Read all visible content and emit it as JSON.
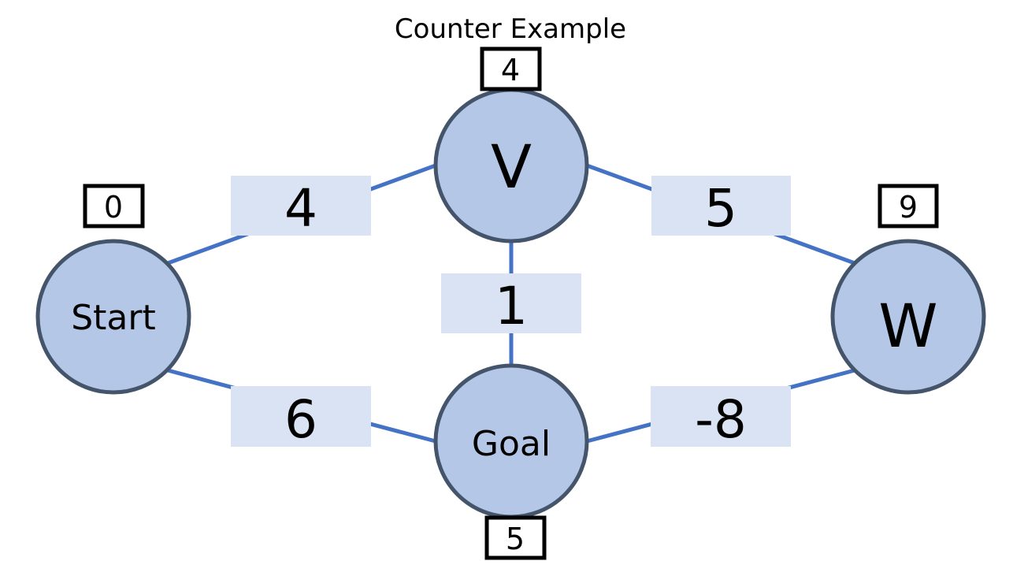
{
  "title": "Counter Example",
  "nodes": {
    "start": {
      "label": "Start",
      "distance": "0"
    },
    "v": {
      "label": "V",
      "distance": "4"
    },
    "w": {
      "label": "W",
      "distance": "9"
    },
    "goal": {
      "label": "Goal",
      "distance": "5"
    }
  },
  "edges": {
    "start_v": {
      "weight": "4"
    },
    "v_w": {
      "weight": "5"
    },
    "v_goal": {
      "weight": "1"
    },
    "start_goal": {
      "weight": "6"
    },
    "goal_w": {
      "weight": "-8"
    }
  },
  "colors": {
    "edge": "#4472c4",
    "node_fill": "#b4c7e7",
    "node_stroke": "#44546a",
    "weight_box": "#dae3f3"
  }
}
